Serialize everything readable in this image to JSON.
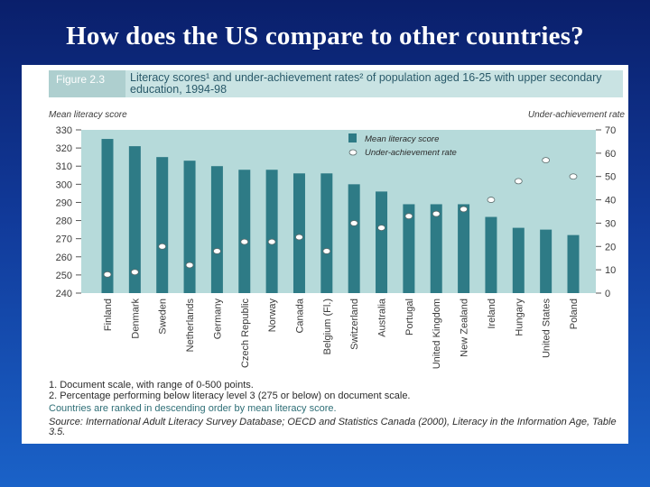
{
  "slide": {
    "title": "How does the US compare to other countries?"
  },
  "figure": {
    "number": "Figure 2.3",
    "caption": "Literacy scores¹ and under-achievement rates² of population aged 16-25 with upper secondary education, 1994-98"
  },
  "notes": {
    "note1": "1. Document scale, with range of 0-500 points.",
    "note2": "2. Percentage performing below literacy level 3 (275 or below) on document scale.",
    "ranking": "Countries are ranked in descending order by mean literacy score.",
    "source": "Source: International Adult Literacy Survey Database; OECD and Statistics Canada (2000), Literacy in the Information Age, Table 3.5."
  },
  "colors": {
    "bar": "#2e7b86",
    "plot_bg": "#b6dada",
    "axis_text": "#3a3a3a",
    "header_bg": "#c9e3e3"
  },
  "chart_data": {
    "type": "bar",
    "title": "Literacy scores and under-achievement rates of population aged 16-25 with upper secondary education, 1994-98",
    "ylabel_left": "Mean literacy score",
    "ylabel_right": "Under-achievement rate",
    "categories": [
      "Finland",
      "Denmark",
      "Sweden",
      "Netherlands",
      "Germany",
      "Czech Republic",
      "Norway",
      "Canada",
      "Belgium (Fl.)",
      "Switzerland",
      "Australia",
      "Portugal",
      "United Kingdom",
      "New Zealand",
      "Ireland",
      "Hungary",
      "United States",
      "Poland"
    ],
    "ylim_left": [
      240,
      330
    ],
    "yticks_left": [
      240,
      250,
      260,
      270,
      280,
      290,
      300,
      310,
      320,
      330
    ],
    "ylim_right": [
      0,
      70
    ],
    "yticks_right": [
      0,
      10,
      20,
      30,
      40,
      50,
      60,
      70
    ],
    "series": [
      {
        "name": "Mean literacy score",
        "axis": "left",
        "kind": "bar",
        "values": [
          325,
          321,
          315,
          313,
          310,
          308,
          308,
          306,
          306,
          300,
          296,
          289,
          289,
          289,
          282,
          276,
          275,
          272
        ]
      },
      {
        "name": "Under-achievement rate",
        "axis": "right",
        "kind": "marker",
        "values": [
          8,
          9,
          20,
          12,
          18,
          22,
          22,
          24,
          18,
          30,
          28,
          33,
          34,
          36,
          40,
          48,
          57,
          50
        ]
      }
    ],
    "legend_position": "top-right"
  }
}
